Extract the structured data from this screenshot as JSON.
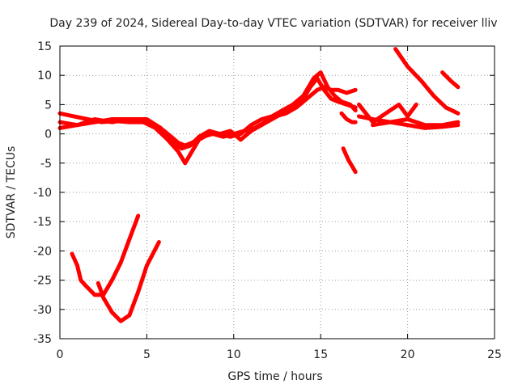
{
  "chart_data": {
    "type": "line",
    "title": "Day 239 of 2024, Sidereal Day-to-day VTEC variation (SDTVAR) for receiver lliv",
    "xlabel": "GPS time / hours",
    "ylabel": "SDTVAR / TECUs",
    "xlim": [
      0,
      25
    ],
    "ylim": [
      -35,
      15
    ],
    "xticks": [
      0,
      5,
      10,
      15,
      20,
      25
    ],
    "yticks": [
      15,
      10,
      5,
      0,
      -5,
      -10,
      -15,
      -20,
      -25,
      -30,
      -35
    ],
    "grid": true,
    "legend": "none",
    "series_color": "#ff0000",
    "series": [
      {
        "x": [
          0.0,
          0.8,
          1.6,
          2.4,
          3.2,
          4.0,
          4.8,
          5.5,
          6.0,
          6.4,
          6.8,
          7.2,
          7.6,
          8.2,
          8.8,
          9.4,
          10.0,
          10.6,
          11.2,
          11.8,
          12.4,
          13.0,
          13.6,
          14.2,
          14.8,
          15.2,
          15.6,
          16.0,
          16.5,
          17.0
        ],
        "y": [
          3.5,
          3.0,
          2.5,
          2.0,
          2.2,
          2.0,
          2.0,
          1.5,
          0.5,
          -0.5,
          -1.5,
          -2.0,
          -1.5,
          -0.5,
          0.0,
          -0.5,
          0.0,
          0.5,
          1.0,
          2.0,
          3.0,
          3.5,
          4.5,
          6.0,
          7.5,
          8.0,
          7.5,
          7.5,
          7.0,
          7.5
        ]
      },
      {
        "x": [
          0.0,
          1.0,
          2.0,
          3.0,
          4.0,
          4.8,
          5.5,
          6.2,
          6.8,
          7.2,
          7.6,
          8.0,
          8.6,
          9.2,
          9.8,
          10.4,
          11.0,
          11.6,
          12.2,
          12.8,
          13.4,
          14.0,
          14.6,
          15.0,
          15.4,
          15.8,
          16.2,
          16.7,
          17.0
        ],
        "y": [
          1.0,
          1.5,
          2.0,
          2.5,
          2.5,
          2.0,
          1.0,
          -1.0,
          -3.0,
          -5.0,
          -3.0,
          -1.0,
          0.0,
          0.0,
          -0.5,
          0.0,
          1.5,
          2.5,
          3.0,
          4.0,
          5.0,
          6.5,
          9.5,
          10.5,
          8.0,
          6.5,
          5.5,
          5.0,
          4.0
        ]
      },
      {
        "x": [
          0.0,
          1.0,
          2.0,
          3.0,
          4.0,
          5.0,
          5.8,
          6.5,
          7.0,
          7.5,
          8.0,
          8.6,
          9.2,
          9.8,
          10.4,
          11.0,
          11.6,
          12.2,
          12.8,
          13.4,
          14.0,
          14.4,
          14.8,
          15.2,
          15.6,
          16.0,
          16.5,
          17.0
        ],
        "y": [
          2.0,
          1.5,
          2.5,
          2.0,
          2.5,
          2.5,
          1.0,
          -1.5,
          -2.5,
          -2.0,
          -0.5,
          0.5,
          0.0,
          0.5,
          -1.0,
          0.5,
          1.5,
          2.5,
          3.5,
          4.5,
          6.0,
          8.0,
          9.5,
          7.5,
          6.0,
          5.5,
          5.0,
          4.5
        ]
      },
      {
        "x": [
          16.2,
          16.5,
          16.8,
          17.0
        ],
        "y": [
          3.5,
          2.5,
          2.0,
          2.0
        ]
      },
      {
        "x": [
          16.3,
          16.6,
          16.8,
          17.0
        ],
        "y": [
          -2.5,
          -4.5,
          -5.5,
          -6.5
        ]
      },
      {
        "x": [
          17.2,
          18.0,
          19.0,
          20.0,
          21.0,
          22.0,
          22.9
        ],
        "y": [
          3.0,
          2.5,
          2.0,
          1.5,
          1.0,
          1.2,
          1.5
        ]
      },
      {
        "x": [
          17.2,
          18.0,
          19.0,
          19.5,
          20.0,
          20.5
        ],
        "y": [
          5.0,
          2.0,
          4.0,
          5.0,
          3.0,
          5.0
        ]
      },
      {
        "x": [
          18.0,
          19.0,
          20.0,
          21.0,
          22.0,
          22.9
        ],
        "y": [
          1.5,
          2.0,
          2.5,
          1.5,
          1.5,
          2.0
        ]
      },
      {
        "x": [
          19.3,
          20.0,
          20.8,
          21.5,
          22.2,
          22.9
        ],
        "y": [
          14.5,
          11.5,
          9.0,
          6.5,
          4.5,
          3.5
        ]
      },
      {
        "x": [
          22.0,
          22.5,
          22.9
        ],
        "y": [
          10.5,
          9.0,
          8.0
        ]
      },
      {
        "x": [
          0.7,
          1.0,
          1.2,
          1.5,
          2.0,
          2.5,
          3.0,
          3.5,
          4.0,
          4.5
        ],
        "y": [
          -20.5,
          -22.5,
          -25.0,
          -26.0,
          -27.5,
          -27.5,
          -25.0,
          -22.0,
          -18.0,
          -14.0
        ]
      },
      {
        "x": [
          2.2,
          2.5,
          3.0,
          3.5,
          4.0,
          4.5,
          5.0,
          5.7
        ],
        "y": [
          -25.5,
          -28.0,
          -30.5,
          -32.0,
          -31.0,
          -27.0,
          -22.5,
          -18.5
        ]
      }
    ]
  }
}
